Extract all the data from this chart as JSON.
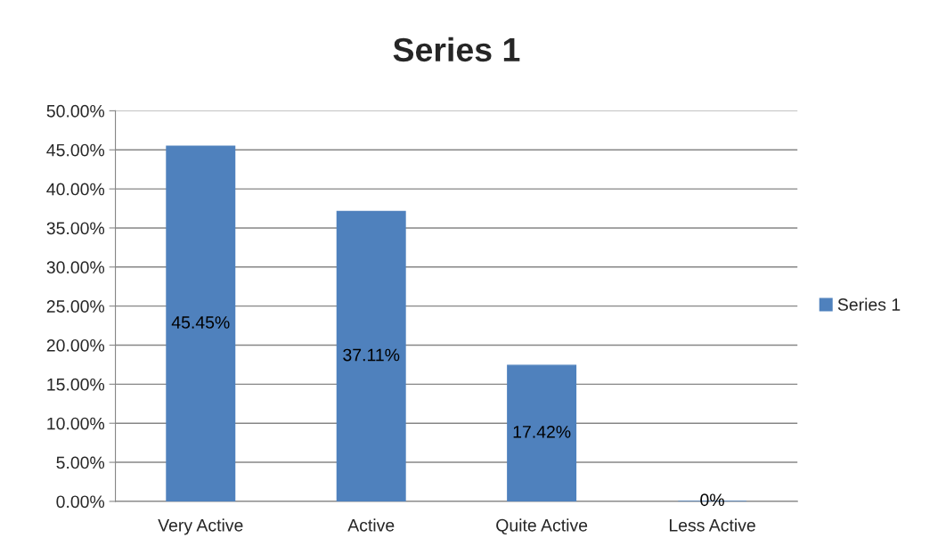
{
  "chart_data": {
    "type": "bar",
    "title": "Series 1",
    "categories": [
      "Very Active",
      "Active",
      "Quite Active",
      "Less Active"
    ],
    "series": [
      {
        "name": "Series 1",
        "color": "#4f81bd",
        "values": [
          45.45,
          37.11,
          17.42,
          0
        ],
        "value_labels": [
          "45.45%",
          "37.11%",
          "17.42%",
          "0%"
        ]
      }
    ],
    "ylim": [
      0,
      50
    ],
    "yticks": [
      {
        "value": 0,
        "label": "0.00%"
      },
      {
        "value": 5,
        "label": "5.00%"
      },
      {
        "value": 10,
        "label": "10.00%"
      },
      {
        "value": 15,
        "label": "15.00%"
      },
      {
        "value": 20,
        "label": "20.00%"
      },
      {
        "value": 25,
        "label": "25.00%"
      },
      {
        "value": 30,
        "label": "30.00%"
      },
      {
        "value": 35,
        "label": "35.00%"
      },
      {
        "value": 40,
        "label": "40.00%"
      },
      {
        "value": 45,
        "label": "45.00%"
      },
      {
        "value": 50,
        "label": "50.00%"
      }
    ],
    "grid": "y",
    "legend": "right"
  }
}
